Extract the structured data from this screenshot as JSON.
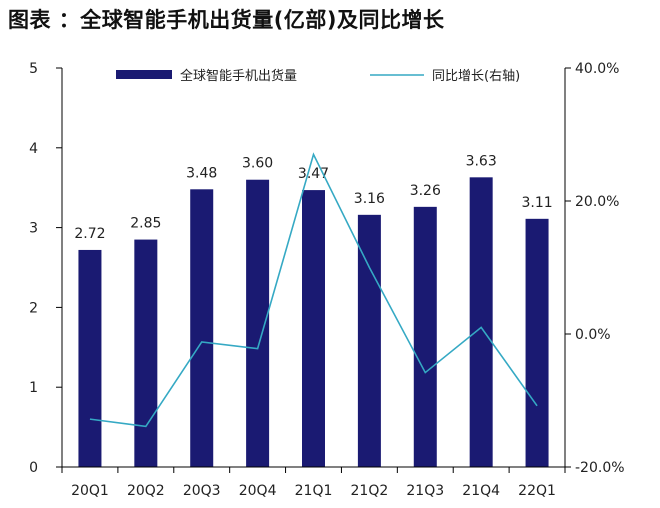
{
  "title": "图表 ：全球智能手机出货量(亿部)及同比增长",
  "colors": {
    "bar": "#1a1a72",
    "line": "#35a9c4",
    "axis": "#000000"
  },
  "chart_data": {
    "type": "bar",
    "title": "图表 ：全球智能手机出货量(亿部)及同比增长",
    "categories": [
      "20Q1",
      "20Q2",
      "20Q3",
      "20Q4",
      "21Q1",
      "21Q2",
      "21Q3",
      "21Q4",
      "22Q1"
    ],
    "series": [
      {
        "name": "全球智能手机出货量",
        "type": "bar",
        "axis": "left",
        "values": [
          2.72,
          2.85,
          3.48,
          3.6,
          3.47,
          3.16,
          3.26,
          3.63,
          3.11
        ],
        "labels": [
          "2.72",
          "2.85",
          "3.48",
          "3.60",
          "3.47",
          "3.16",
          "3.26",
          "3.63",
          "3.11"
        ]
      },
      {
        "name": "同比增长(右轴)",
        "type": "line",
        "axis": "right",
        "values": [
          -12.8,
          -13.9,
          -1.2,
          -2.2,
          27.0,
          10.0,
          -5.8,
          1.0,
          -10.8
        ]
      }
    ],
    "y_left": {
      "ylim": [
        0,
        5
      ],
      "ticks": [
        "0",
        "1",
        "2",
        "3",
        "4",
        "5"
      ]
    },
    "y_right": {
      "ylim": [
        -20,
        40
      ],
      "ticks": [
        "-20.0%",
        "0.0%",
        "20.0%",
        "40.0%"
      ]
    },
    "legend": {
      "placement": "top"
    },
    "grid": false
  }
}
